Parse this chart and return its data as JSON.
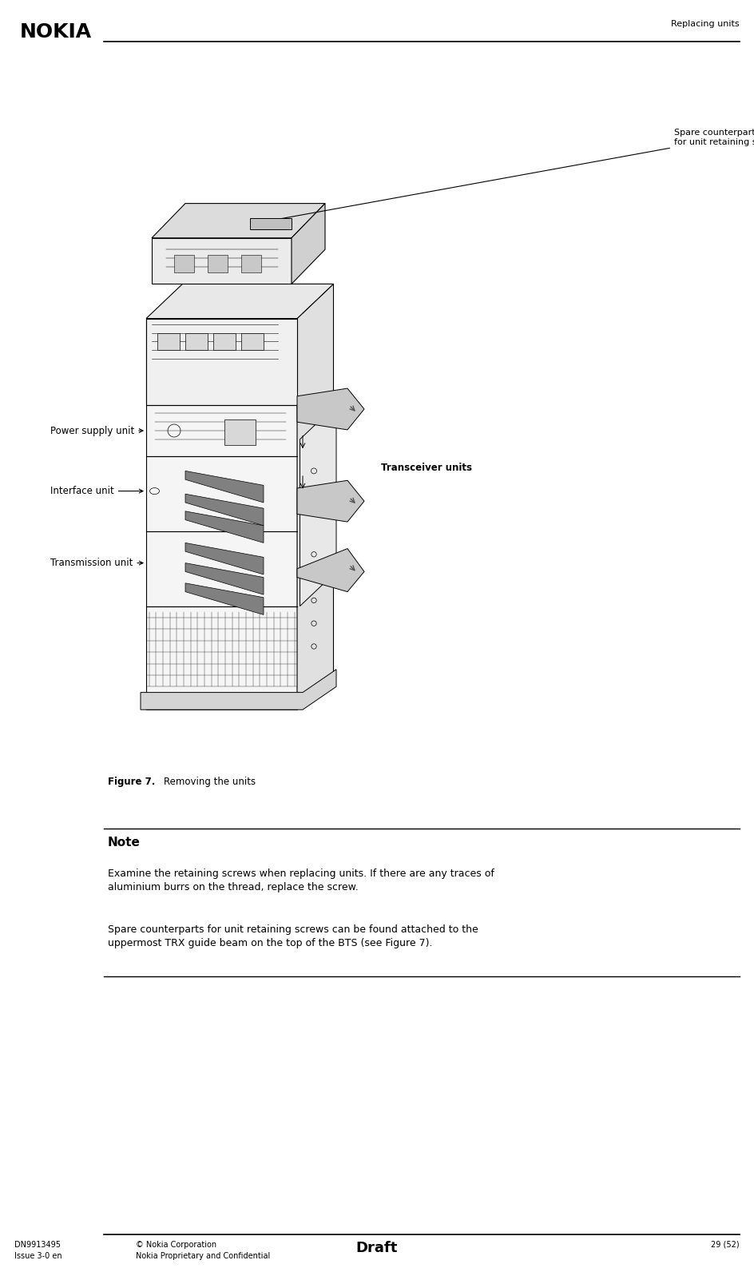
{
  "page_width": 9.44,
  "page_height": 15.97,
  "dpi": 100,
  "bg_color": "#ffffff",
  "header_text_right": "Replacing units",
  "nokia_logo_text": "NOKIA",
  "footer_left_line1": "DN9913495",
  "footer_left_line2": "Issue 3-0 en",
  "footer_center_line1": "© Nokia Corporation",
  "footer_center_line2": "Nokia Proprietary and Confidential",
  "footer_center_bold": "Draft",
  "footer_right": "29 (52)",
  "figure_caption_bold": "Figure 7.",
  "figure_caption_rest": "    Removing the units",
  "note_header": "Note",
  "note_text1": "Examine the retaining screws when replacing units. If there are any traces of\naluminium burrs on the thread, replace the screw.",
  "note_text2": "Spare counterparts for unit retaining screws can be found attached to the\nuppermost TRX guide beam on the top of the BTS (see Figure 7).",
  "label_power_supply": "Power supply unit",
  "label_interface": "Interface unit",
  "label_transmission": "Transmission unit",
  "label_transceiver": "Transceiver units",
  "label_spare_line1": "Spare counterparts",
  "label_spare_line2": "for unit retaining screws"
}
